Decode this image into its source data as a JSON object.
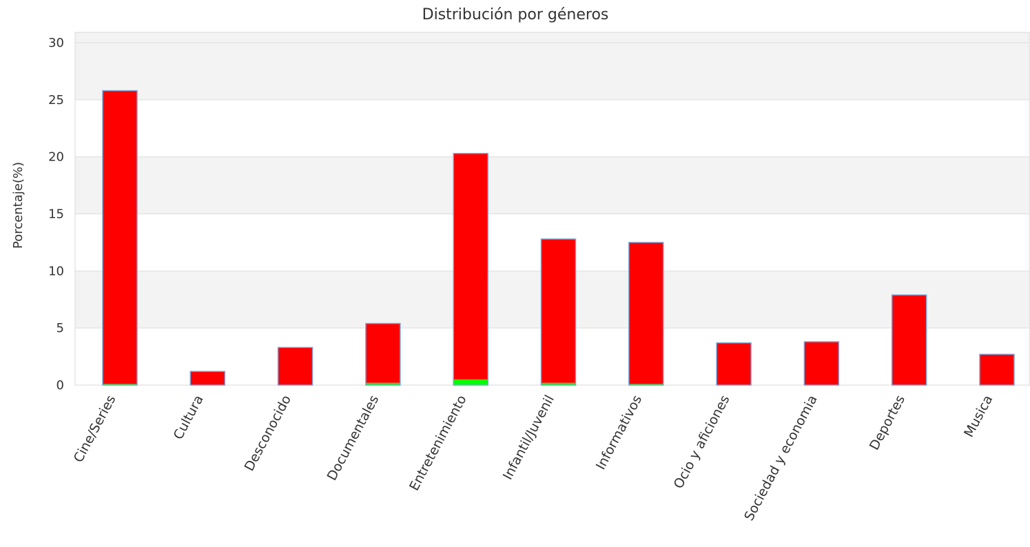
{
  "chart_data": {
    "type": "bar",
    "title": "Distribución por géneros",
    "xlabel": "",
    "ylabel": "Porcentaje(%)",
    "ylim": [
      0,
      30
    ],
    "yticks": [
      0,
      5,
      10,
      15,
      20,
      25,
      30
    ],
    "grid": true,
    "stacked": true,
    "categories": [
      "Cine/Series",
      "Cultura",
      "Desconocido",
      "Documentales",
      "Entretenimiento",
      "Infantil/Juvenil",
      "Informativos",
      "Ocio y aficiones",
      "Sociedad y economia",
      "Deportes",
      "Musica"
    ],
    "series": [
      {
        "values": [
          0.1,
          0.0,
          0.0,
          0.2,
          0.5,
          0.2,
          0.1,
          0.0,
          0.0,
          0.0,
          0.0
        ],
        "color": "#00ff00"
      },
      {
        "values": [
          25.7,
          1.2,
          3.3,
          5.2,
          19.8,
          12.6,
          12.4,
          3.7,
          3.8,
          7.9,
          2.7
        ],
        "color": "#ff0000"
      }
    ],
    "bar_edge_color": "#7ba3d8",
    "band_color": "#f3f3f3"
  }
}
